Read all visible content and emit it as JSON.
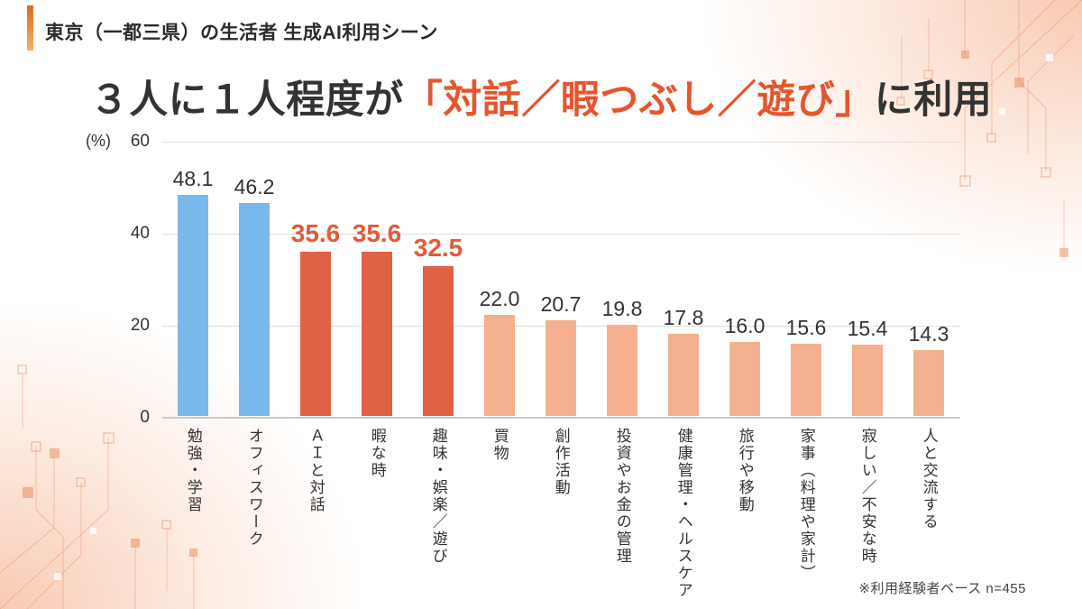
{
  "header": {
    "title": "東京（一都三県）の生活者 生成AI利用シーン"
  },
  "title": {
    "prefix": "３人に１人程度が",
    "highlight": "「対話／暇つぶし／遊び」",
    "suffix": "に利用"
  },
  "chart_data": {
    "type": "bar",
    "unit_label": "(%)",
    "ylim": [
      0,
      60
    ],
    "y_ticks": [
      "60",
      "40",
      "20",
      "0"
    ],
    "grid": true,
    "categories": [
      "勉強・学習",
      "オフィスワーク",
      "ＡＩと対話",
      "暇な時",
      "趣味・娯楽／遊び",
      "買物",
      "創作活動",
      "投資やお金の管理",
      "健康管理・ヘルスケア",
      "旅行や移動",
      "家事（料理や家計）",
      "寂しい／不安な時",
      "人と交流する"
    ],
    "values": [
      48.1,
      46.2,
      35.6,
      35.6,
      32.5,
      22.0,
      20.7,
      19.8,
      17.8,
      16.0,
      15.6,
      15.4,
      14.3
    ],
    "value_labels": [
      "48.1",
      "46.2",
      "35.6",
      "35.6",
      "32.5",
      "22.0",
      "20.7",
      "19.8",
      "17.8",
      "16.0",
      "15.6",
      "15.4",
      "14.3"
    ],
    "bar_colors": [
      "blue",
      "blue",
      "dark_orange",
      "dark_orange",
      "dark_orange",
      "light_orange",
      "light_orange",
      "light_orange",
      "light_orange",
      "light_orange",
      "light_orange",
      "light_orange",
      "light_orange"
    ],
    "highlighted_value_indexes": [
      2,
      3,
      4
    ]
  },
  "footnote": "※利用経験者ベース n=455",
  "colors": {
    "blue": "#78b8eb",
    "dark_orange": "#e06242",
    "light_orange": "#f5b090",
    "accent": "#e6552d",
    "value_highlight": "#e25a36"
  }
}
